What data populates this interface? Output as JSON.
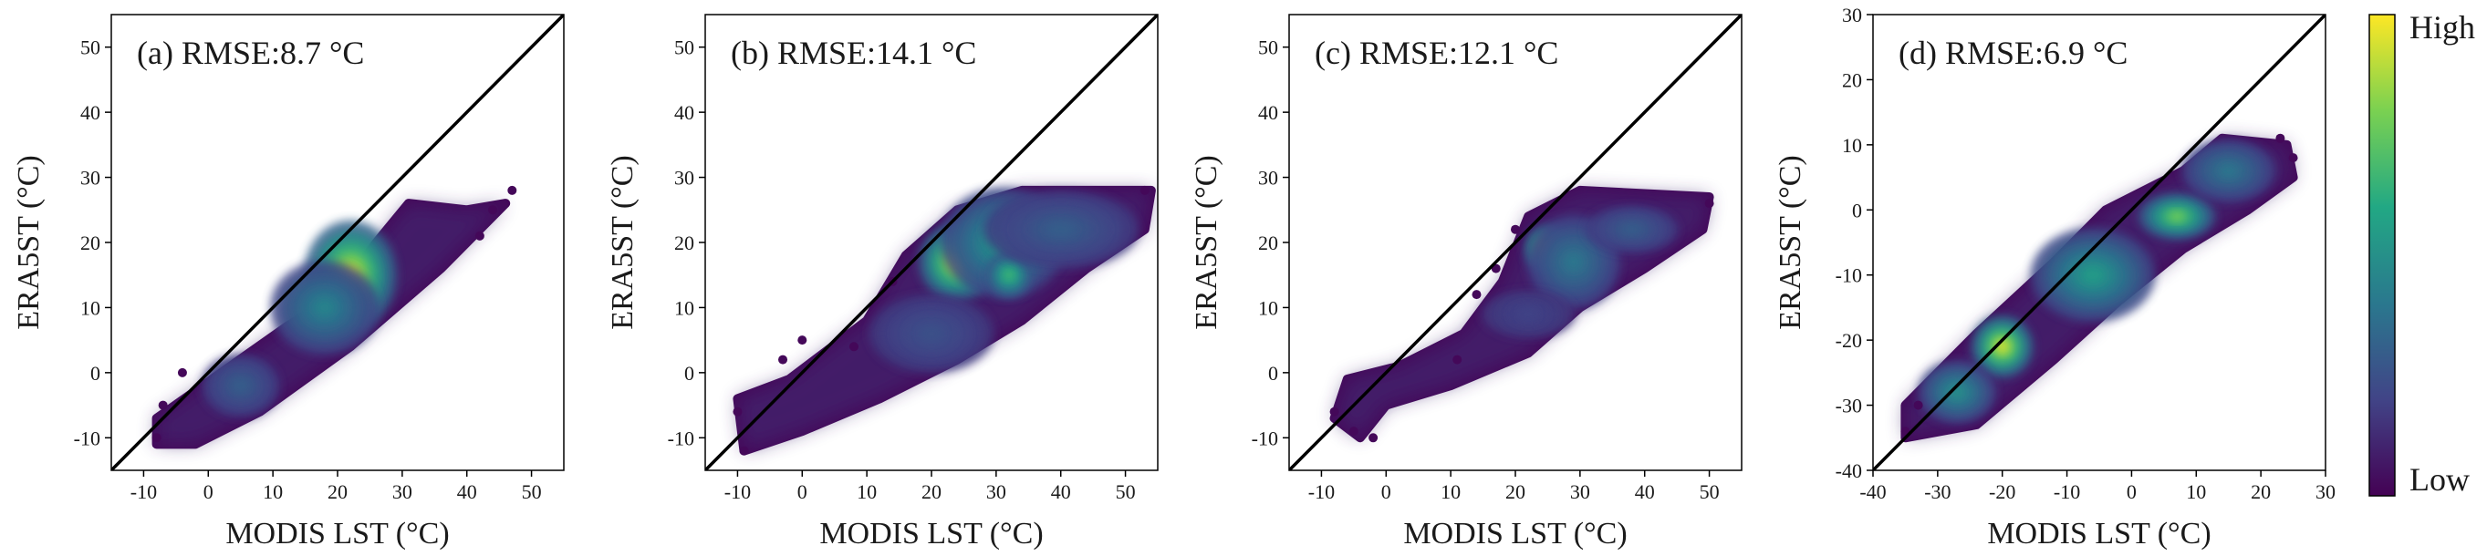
{
  "colorbar": {
    "high_label": "High",
    "low_label": "Low",
    "colors": [
      "#440154",
      "#414487",
      "#2a788e",
      "#22a884",
      "#7ad151",
      "#fde725"
    ]
  },
  "chart_data": [
    {
      "type": "scatter",
      "id": "a",
      "title": "(a) RMSE:8.7 °C",
      "xlabel": "MODIS LST (°C)",
      "ylabel": "ERA5ST (°C)",
      "xlim": [
        -15,
        55
      ],
      "ylim": [
        -15,
        55
      ],
      "xticks": [
        -10,
        0,
        10,
        20,
        30,
        40,
        50
      ],
      "yticks": [
        -10,
        0,
        10,
        20,
        30,
        40,
        50
      ],
      "identity_line": true,
      "density_cloud": [
        [
          -8,
          -11
        ],
        [
          -8,
          -7
        ],
        [
          2,
          0
        ],
        [
          12,
          7
        ],
        [
          20,
          12
        ],
        [
          26,
          20
        ],
        [
          31,
          26
        ],
        [
          40,
          25
        ],
        [
          46,
          26
        ],
        [
          36,
          16
        ],
        [
          22,
          4
        ],
        [
          8,
          -6
        ],
        [
          -2,
          -11
        ]
      ],
      "density_blobs": [
        {
          "x": 22,
          "y": 15,
          "rx": 6,
          "ry": 7,
          "level": 0.97
        },
        {
          "x": 18,
          "y": 10,
          "rx": 7,
          "ry": 6,
          "level": 0.45
        },
        {
          "x": 5,
          "y": -2,
          "rx": 5,
          "ry": 4,
          "level": 0.3
        }
      ],
      "outlier_points": [
        [
          47,
          28
        ],
        [
          44,
          25
        ],
        [
          -7,
          -5
        ],
        [
          -4,
          0
        ],
        [
          -8,
          -10
        ],
        [
          42,
          21
        ]
      ]
    },
    {
      "type": "scatter",
      "id": "b",
      "title": "(b) RMSE:14.1 °C",
      "xlabel": "MODIS LST (°C)",
      "ylabel": "ERA5ST (°C)",
      "xlim": [
        -15,
        55
      ],
      "ylim": [
        -15,
        55
      ],
      "xticks": [
        -10,
        0,
        10,
        20,
        30,
        40,
        50
      ],
      "yticks": [
        -10,
        0,
        10,
        20,
        30,
        40,
        50
      ],
      "identity_line": true,
      "density_cloud": [
        [
          -9,
          -12
        ],
        [
          -10,
          -4
        ],
        [
          -2,
          -1
        ],
        [
          10,
          8
        ],
        [
          16,
          18
        ],
        [
          24,
          25
        ],
        [
          34,
          28
        ],
        [
          54,
          28
        ],
        [
          53,
          22
        ],
        [
          44,
          16
        ],
        [
          34,
          8
        ],
        [
          24,
          2
        ],
        [
          12,
          -4
        ],
        [
          0,
          -9
        ]
      ],
      "density_blobs": [
        {
          "x": 24,
          "y": 17,
          "rx": 5,
          "ry": 5,
          "level": 0.97
        },
        {
          "x": 31,
          "y": 20,
          "rx": 8,
          "ry": 7,
          "level": 0.55
        },
        {
          "x": 32,
          "y": 15,
          "rx": 3,
          "ry": 3,
          "level": 0.7
        },
        {
          "x": 40,
          "y": 22,
          "rx": 10,
          "ry": 5,
          "level": 0.3
        },
        {
          "x": 20,
          "y": 6,
          "rx": 8,
          "ry": 5,
          "level": 0.25
        }
      ],
      "outlier_points": [
        [
          -9,
          -12
        ],
        [
          -3,
          2
        ],
        [
          0,
          5
        ],
        [
          14,
          14
        ],
        [
          53,
          28
        ],
        [
          -10,
          -6
        ],
        [
          8,
          4
        ]
      ]
    },
    {
      "type": "scatter",
      "id": "c",
      "title": "(c) RMSE:12.1 °C",
      "xlabel": "MODIS LST (°C)",
      "ylabel": "ERA5ST (°C)",
      "xlim": [
        -15,
        55
      ],
      "ylim": [
        -15,
        55
      ],
      "xticks": [
        -10,
        0,
        10,
        20,
        30,
        40,
        50
      ],
      "yticks": [
        -10,
        0,
        10,
        20,
        30,
        40,
        50
      ],
      "identity_line": true,
      "density_cloud": [
        [
          -8,
          -7
        ],
        [
          -6,
          -1
        ],
        [
          2,
          1
        ],
        [
          12,
          6
        ],
        [
          18,
          14
        ],
        [
          22,
          24
        ],
        [
          30,
          28
        ],
        [
          50,
          27
        ],
        [
          49,
          22
        ],
        [
          40,
          16
        ],
        [
          30,
          10
        ],
        [
          22,
          3
        ],
        [
          10,
          -2
        ],
        [
          0,
          -5
        ],
        [
          -4,
          -10
        ]
      ],
      "density_blobs": [
        {
          "x": 25,
          "y": 19,
          "rx": 3,
          "ry": 3,
          "level": 0.97
        },
        {
          "x": 29,
          "y": 17,
          "rx": 6,
          "ry": 6,
          "level": 0.4
        },
        {
          "x": 38,
          "y": 22,
          "rx": 6,
          "ry": 3,
          "level": 0.3
        },
        {
          "x": 22,
          "y": 9,
          "rx": 6,
          "ry": 3,
          "level": 0.2
        }
      ],
      "outlier_points": [
        [
          -5,
          -9
        ],
        [
          -8,
          -6
        ],
        [
          -2,
          -10
        ],
        [
          11,
          2
        ],
        [
          20,
          22
        ],
        [
          17,
          16
        ],
        [
          14,
          12
        ],
        [
          50,
          26
        ]
      ]
    },
    {
      "type": "scatter",
      "id": "d",
      "title": "(d) RMSE:6.9 °C",
      "xlabel": "MODIS LST (°C)",
      "ylabel": "ERA5ST (°C)",
      "xlim": [
        -40,
        30
      ],
      "ylim": [
        -40,
        30
      ],
      "xticks": [
        -40,
        -30,
        -20,
        -10,
        0,
        10,
        20,
        30
      ],
      "yticks": [
        -40,
        -30,
        -20,
        -10,
        0,
        10,
        20,
        30
      ],
      "identity_line": true,
      "density_cloud": [
        [
          -35,
          -35
        ],
        [
          -35,
          -30
        ],
        [
          -24,
          -19
        ],
        [
          -12,
          -8
        ],
        [
          -4,
          0
        ],
        [
          8,
          6
        ],
        [
          14,
          11
        ],
        [
          24,
          10
        ],
        [
          25,
          5
        ],
        [
          18,
          0
        ],
        [
          8,
          -6
        ],
        [
          -2,
          -14
        ],
        [
          -12,
          -23
        ],
        [
          -24,
          -33
        ]
      ],
      "density_blobs": [
        {
          "x": -20,
          "y": -21,
          "rx": 4,
          "ry": 4,
          "level": 0.97
        },
        {
          "x": 7,
          "y": -1,
          "rx": 5,
          "ry": 3,
          "level": 0.8
        },
        {
          "x": -6,
          "y": -10,
          "rx": 8,
          "ry": 6,
          "level": 0.55
        },
        {
          "x": 15,
          "y": 6,
          "rx": 6,
          "ry": 4,
          "level": 0.4
        },
        {
          "x": -27,
          "y": -28,
          "rx": 5,
          "ry": 4,
          "level": 0.5
        }
      ],
      "outlier_points": [
        [
          -35,
          -34
        ],
        [
          25,
          8
        ],
        [
          23,
          11
        ],
        [
          -33,
          -30
        ]
      ]
    }
  ]
}
